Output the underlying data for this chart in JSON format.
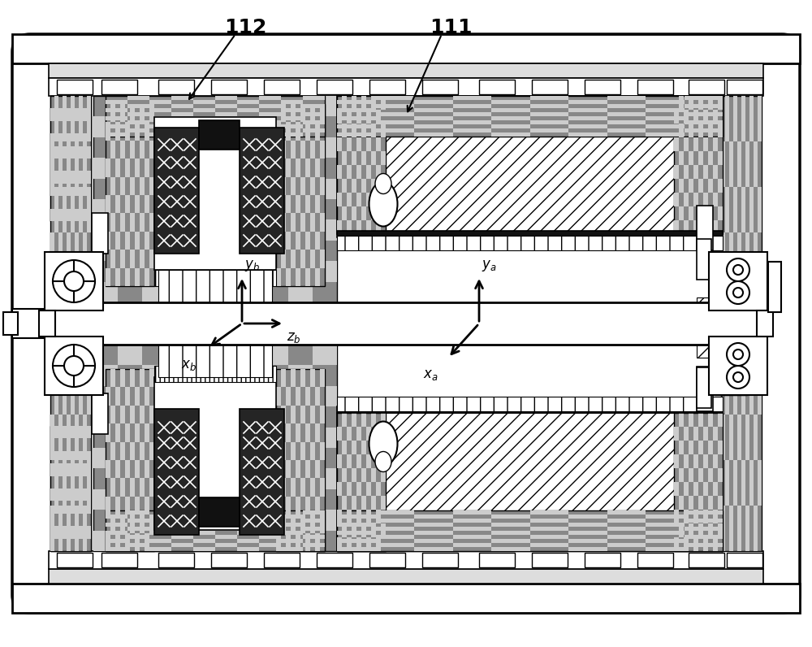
{
  "bg": "#ffffff",
  "label_112": "112",
  "label_111": "111",
  "checker_dark": "#555555",
  "checker_light": "#aaaaaa",
  "dot_pattern": "#888888",
  "dark_fill": "#1a1a1a",
  "mid_dark": "#404040",
  "stator_dark": "#333333",
  "hatch_diag_bg": "#ffffff",
  "hatch_vert_bg": "#ffffff",
  "gray_medium": "#888888",
  "light_gray": "#cccccc"
}
